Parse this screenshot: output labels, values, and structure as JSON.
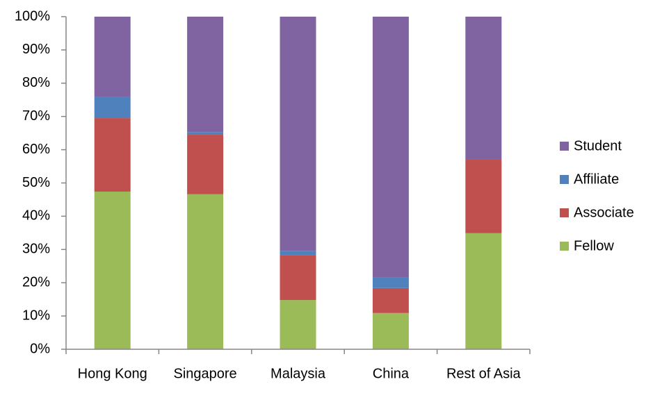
{
  "chart_data": {
    "type": "stacked-bar",
    "categories": [
      "Hong Kong",
      "Singapore",
      "Malaysia",
      "China",
      "Rest of Asia"
    ],
    "series": [
      {
        "name": "Fellow",
        "color": "#9bbb59",
        "values": [
          47.4,
          46.6,
          14.8,
          10.9,
          34.9
        ]
      },
      {
        "name": "Associate",
        "color": "#c0504d",
        "values": [
          22.1,
          17.9,
          13.4,
          7.5,
          22.1
        ]
      },
      {
        "name": "Affiliate",
        "color": "#4f81bd",
        "values": [
          6.3,
          0.8,
          1.4,
          3.3,
          0
        ]
      },
      {
        "name": "Student",
        "color": "#8064a2",
        "values": [
          24.2,
          34.7,
          70.4,
          78.3,
          43.0
        ]
      }
    ],
    "ylim": [
      0,
      100
    ],
    "yticks": [
      {
        "value": 0,
        "label": "0%"
      },
      {
        "value": 10,
        "label": "10%"
      },
      {
        "value": 20,
        "label": "20%"
      },
      {
        "value": 30,
        "label": "30%"
      },
      {
        "value": 40,
        "label": "40%"
      },
      {
        "value": 50,
        "label": "50%"
      },
      {
        "value": 60,
        "label": "60%"
      },
      {
        "value": 70,
        "label": "70%"
      },
      {
        "value": 80,
        "label": "80%"
      },
      {
        "value": 90,
        "label": "90%"
      },
      {
        "value": 100,
        "label": "100%"
      }
    ],
    "legend": "right"
  }
}
